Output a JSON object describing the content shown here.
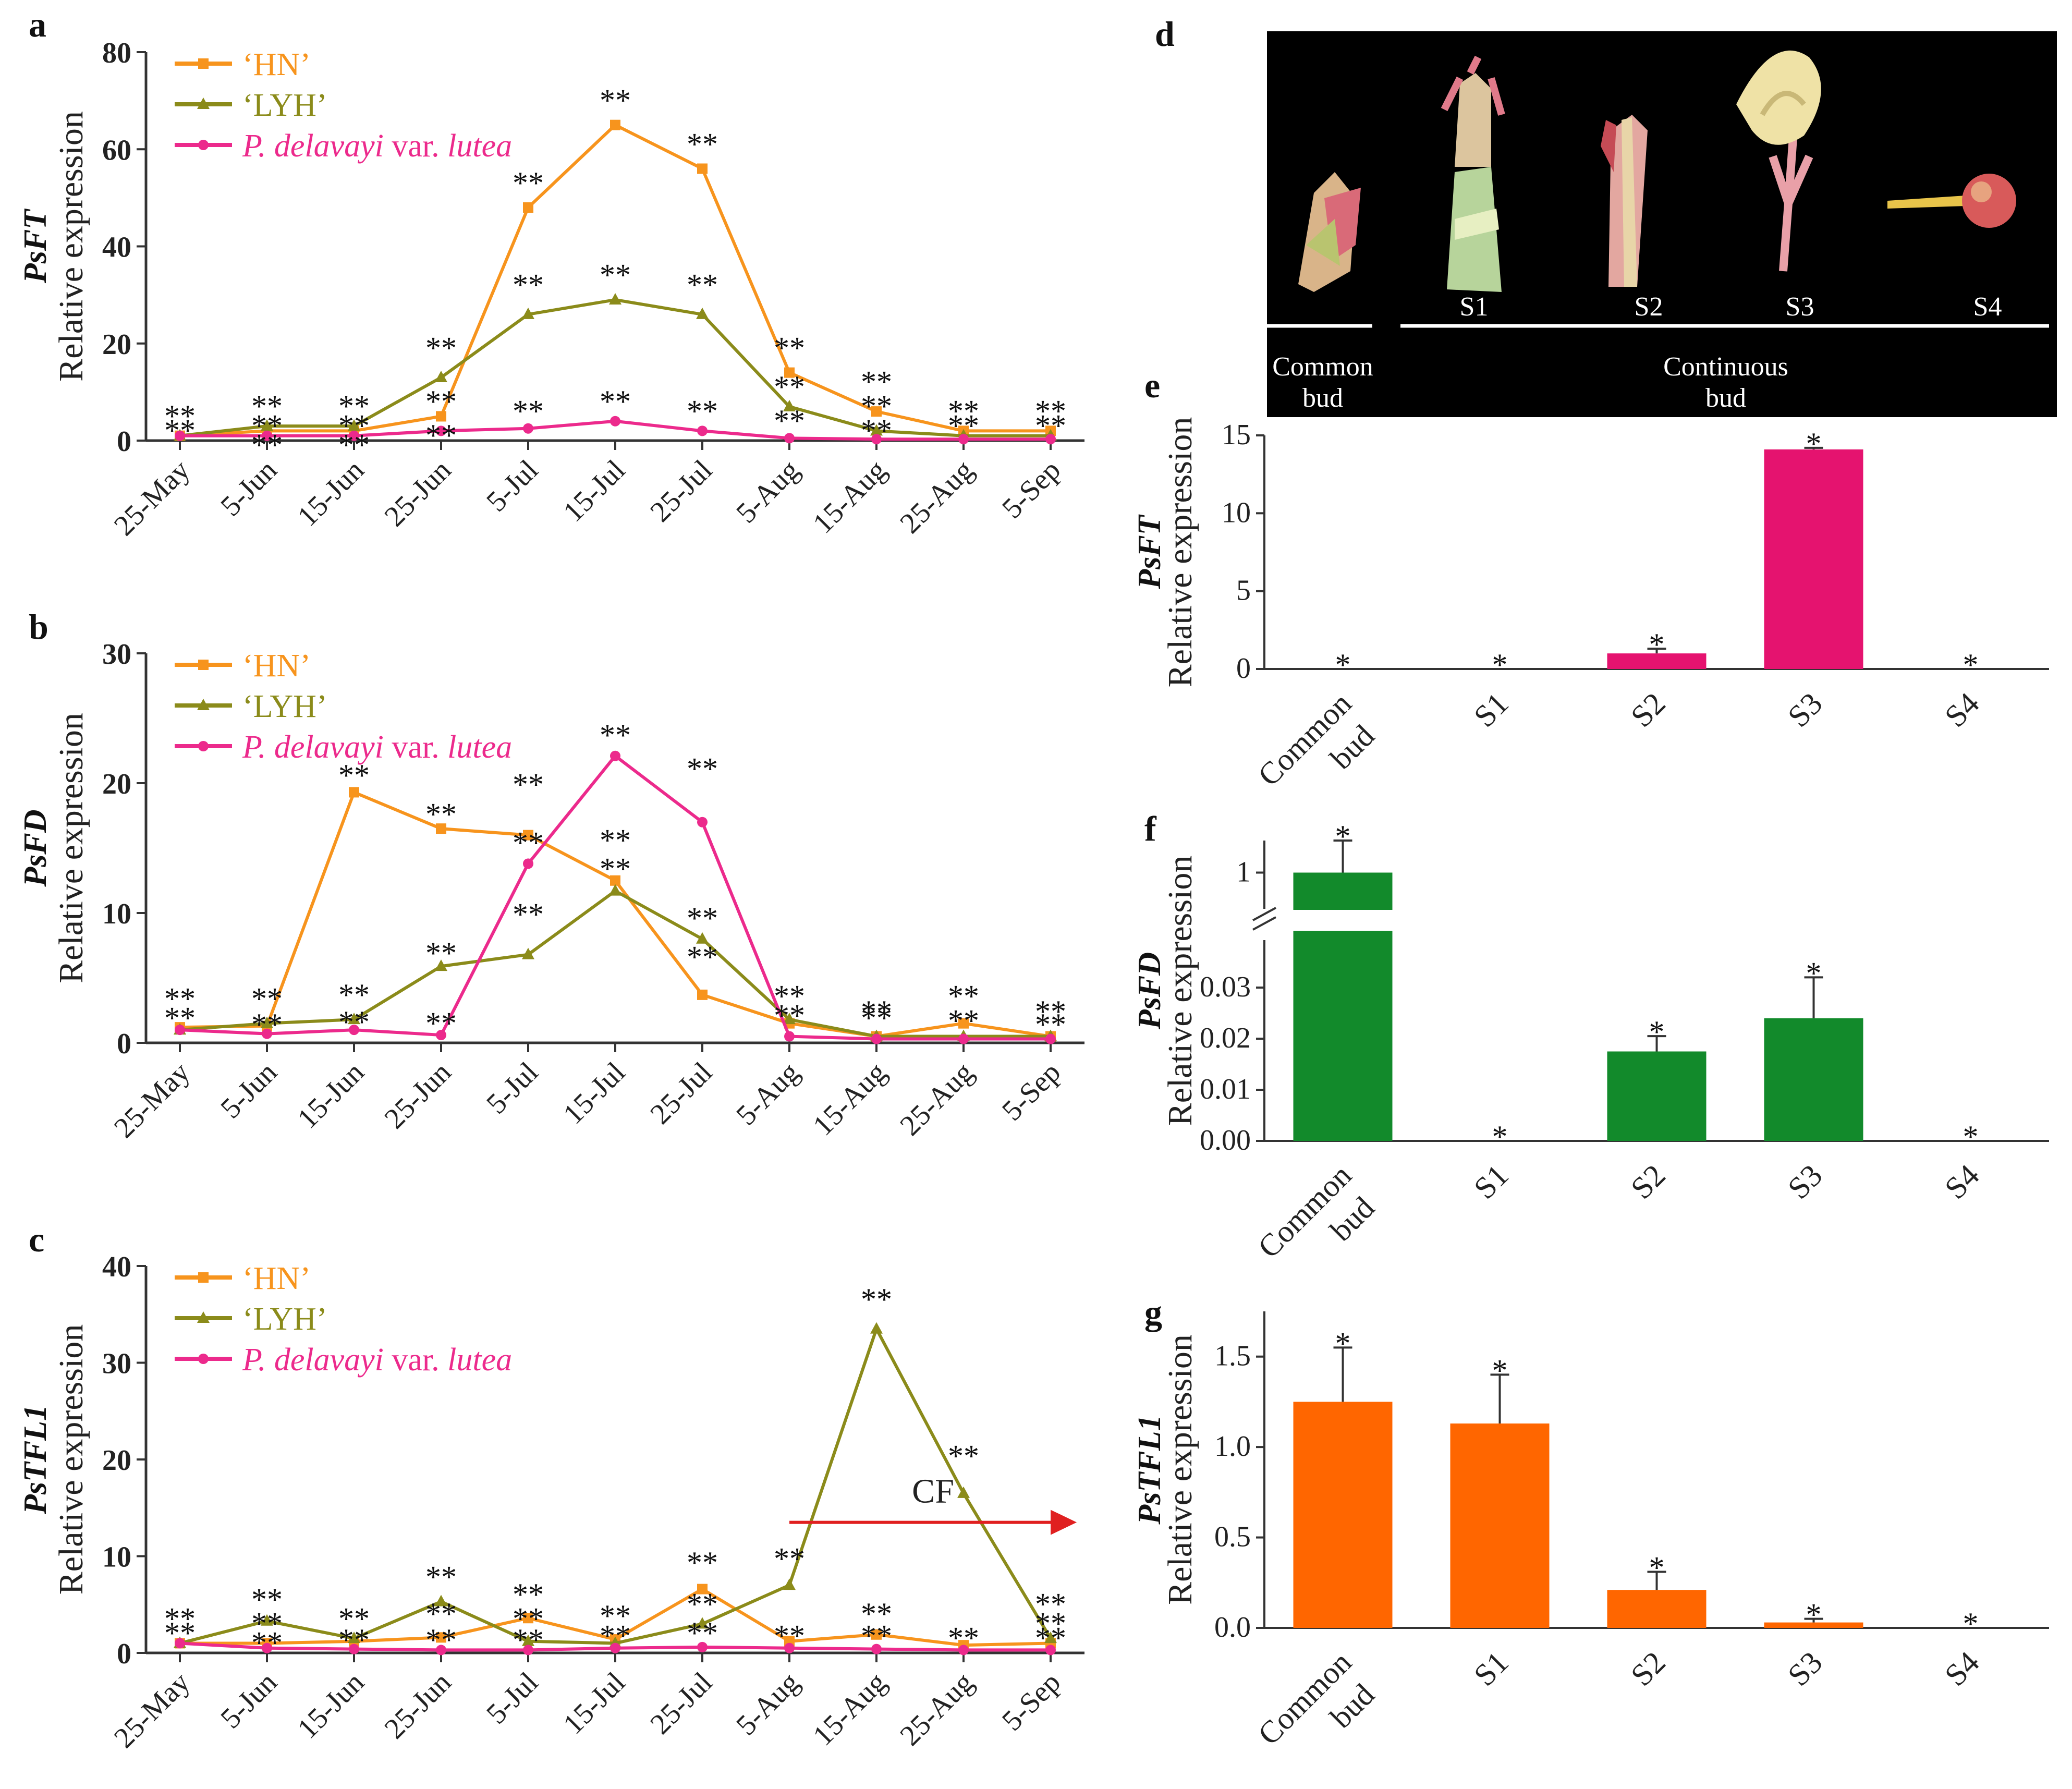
{
  "chart_data": [
    {
      "id": "a",
      "type": "line",
      "panel_label": "a",
      "gene": "PsFT",
      "ylabel": "Relative expression",
      "ylim": [
        0,
        80
      ],
      "yticks": [
        0,
        20,
        40,
        60,
        80
      ],
      "categories": [
        "25-May",
        "5-Jun",
        "15-Jun",
        "25-Jun",
        "5-Jul",
        "15-Jul",
        "25-Jul",
        "5-Aug",
        "15-Aug",
        "25-Aug",
        "5-Sep"
      ],
      "series": [
        {
          "name": "‘HN’",
          "color": "#f7941d",
          "marker": "square",
          "values": [
            1,
            2,
            2,
            5,
            48,
            65,
            56,
            14,
            6,
            2,
            2
          ]
        },
        {
          "name": "‘LYH’",
          "color": "#8b8b1a",
          "marker": "triangle",
          "values": [
            1,
            3,
            3,
            13,
            26,
            29,
            26,
            7,
            2,
            1,
            1
          ]
        },
        {
          "name": "P. delavayi var. lutea",
          "color": "#ec2a8c",
          "marker": "circle",
          "values": [
            1,
            1,
            1,
            2,
            2.5,
            4,
            2,
            0.5,
            0.3,
            0.3,
            0.3
          ]
        }
      ],
      "legend": [
        {
          "text": "‘HN’"
        },
        {
          "text": "‘LYH’"
        },
        {
          "parts": [
            {
              "t": "P. delavayi",
              "i": true
            },
            {
              "t": " var. ",
              "i": false
            },
            {
              "t": "lutea",
              "i": true
            }
          ]
        }
      ],
      "annotations": [
        {
          "text": "**",
          "x": 0,
          "y": 4
        },
        {
          "text": "**",
          "x": 0,
          "y": 1
        },
        {
          "text": "**",
          "x": 1,
          "y": 6
        },
        {
          "text": "**",
          "x": 1,
          "y": 2
        },
        {
          "text": "**",
          "x": 1,
          "y": -2
        },
        {
          "text": "**",
          "x": 2,
          "y": 6
        },
        {
          "text": "**",
          "x": 2,
          "y": 2
        },
        {
          "text": "**",
          "x": 2,
          "y": -2
        },
        {
          "text": "**",
          "x": 3,
          "y": 18
        },
        {
          "text": "**",
          "x": 3,
          "y": 7
        },
        {
          "text": "**",
          "x": 3,
          "y": 0
        },
        {
          "text": "**",
          "x": 4,
          "y": 52
        },
        {
          "text": "**",
          "x": 4,
          "y": 31
        },
        {
          "text": "**",
          "x": 4,
          "y": 5
        },
        {
          "text": "**",
          "x": 5,
          "y": 69
        },
        {
          "text": "**",
          "x": 5,
          "y": 33
        },
        {
          "text": "**",
          "x": 5,
          "y": 7
        },
        {
          "text": "**",
          "x": 6,
          "y": 60
        },
        {
          "text": "**",
          "x": 6,
          "y": 31
        },
        {
          "text": "**",
          "x": 6,
          "y": 5
        },
        {
          "text": "**",
          "x": 7,
          "y": 18
        },
        {
          "text": "**",
          "x": 7,
          "y": 10
        },
        {
          "text": "**",
          "x": 7,
          "y": 3
        },
        {
          "text": "**",
          "x": 8,
          "y": 11
        },
        {
          "text": "**",
          "x": 8,
          "y": 6
        },
        {
          "text": "**",
          "x": 8,
          "y": 1
        },
        {
          "text": "**",
          "x": 9,
          "y": 5
        },
        {
          "text": "**",
          "x": 9,
          "y": 2
        },
        {
          "text": "**",
          "x": 10,
          "y": 5
        },
        {
          "text": "**",
          "x": 10,
          "y": 2
        }
      ]
    },
    {
      "id": "b",
      "type": "line",
      "panel_label": "b",
      "gene": "PsFD",
      "ylabel": "Relative expression",
      "ylim": [
        0,
        30
      ],
      "yticks": [
        0,
        10,
        20,
        30
      ],
      "categories": [
        "25-May",
        "5-Jun",
        "15-Jun",
        "25-Jun",
        "5-Jul",
        "15-Jul",
        "25-Jul",
        "5-Aug",
        "15-Aug",
        "25-Aug",
        "5-Sep"
      ],
      "series": [
        {
          "name": "‘HN’",
          "color": "#f7941d",
          "marker": "square",
          "values": [
            1.2,
            1.3,
            19.3,
            16.5,
            16,
            12.5,
            3.7,
            1.5,
            0.5,
            1.5,
            0.5
          ]
        },
        {
          "name": "‘LYH’",
          "color": "#8b8b1a",
          "marker": "triangle",
          "values": [
            1,
            1.5,
            1.8,
            5.9,
            6.8,
            11.7,
            8,
            1.8,
            0.5,
            0.5,
            0.5
          ]
        },
        {
          "name": "P. delavayi var. lutea",
          "color": "#ec2a8c",
          "marker": "circle",
          "values": [
            1,
            0.7,
            1,
            0.6,
            13.8,
            22.1,
            17,
            0.5,
            0.3,
            0.3,
            0.3
          ]
        }
      ],
      "legend": [
        {
          "text": "‘HN’"
        },
        {
          "text": "‘LYH’"
        },
        {
          "parts": [
            {
              "t": "P. delavayi",
              "i": true
            },
            {
              "t": " var. ",
              "i": false
            },
            {
              "t": "lutea",
              "i": true
            }
          ]
        }
      ],
      "annotations": [
        {
          "text": "**",
          "x": 0,
          "y": 3
        },
        {
          "text": "**",
          "x": 0,
          "y": 1.5
        },
        {
          "text": "**",
          "x": 1,
          "y": 3
        },
        {
          "text": "**",
          "x": 1,
          "y": 1
        },
        {
          "text": "**",
          "x": 2,
          "y": 20.2
        },
        {
          "text": "**",
          "x": 2,
          "y": 3.3
        },
        {
          "text": "**",
          "x": 2,
          "y": 1.2
        },
        {
          "text": "**",
          "x": 3,
          "y": 17.2
        },
        {
          "text": "**",
          "x": 3,
          "y": 6.5
        },
        {
          "text": "**",
          "x": 3,
          "y": 1.1
        },
        {
          "text": "**",
          "x": 4,
          "y": 19.5
        },
        {
          "text": "**",
          "x": 4,
          "y": 15
        },
        {
          "text": "**",
          "x": 4,
          "y": 9.5
        },
        {
          "text": "**",
          "x": 5,
          "y": 23.3
        },
        {
          "text": "**",
          "x": 5,
          "y": 15.2
        },
        {
          "text": "**",
          "x": 5,
          "y": 13
        },
        {
          "text": "**",
          "x": 6,
          "y": 20.7
        },
        {
          "text": "**",
          "x": 6,
          "y": 9.2
        },
        {
          "text": "**",
          "x": 6,
          "y": 6.2
        },
        {
          "text": "**",
          "x": 7,
          "y": 3.2
        },
        {
          "text": "**",
          "x": 7,
          "y": 1.7
        },
        {
          "text": "**",
          "x": 8,
          "y": 2
        },
        {
          "text": "**",
          "x": 8,
          "y": 1.5
        },
        {
          "text": "**",
          "x": 9,
          "y": 3.2
        },
        {
          "text": "**",
          "x": 9,
          "y": 1.3
        },
        {
          "text": "**",
          "x": 10,
          "y": 2
        },
        {
          "text": "**",
          "x": 10,
          "y": 1
        }
      ]
    },
    {
      "id": "c",
      "type": "line",
      "panel_label": "c",
      "gene": "PsTFL1",
      "ylabel": "Relative expression",
      "ylim": [
        0,
        40
      ],
      "yticks": [
        0,
        10,
        20,
        30,
        40
      ],
      "categories": [
        "25-May",
        "5-Jun",
        "15-Jun",
        "25-Jun",
        "5-Jul",
        "15-Jul",
        "25-Jul",
        "5-Aug",
        "15-Aug",
        "25-Aug",
        "5-Sep"
      ],
      "series": [
        {
          "name": "‘HN’",
          "color": "#f7941d",
          "marker": "square",
          "values": [
            1,
            1,
            1.2,
            1.6,
            3.6,
            1.4,
            6.6,
            1.2,
            1.9,
            0.8,
            1
          ]
        },
        {
          "name": "‘LYH’",
          "color": "#8b8b1a",
          "marker": "triangle",
          "values": [
            1,
            3.3,
            1.5,
            5.3,
            1.2,
            1,
            3,
            7,
            33.5,
            16.5,
            1.5
          ]
        },
        {
          "name": "P. delavayi var. lutea",
          "color": "#ec2a8c",
          "marker": "circle",
          "values": [
            1,
            0.5,
            0.4,
            0.3,
            0.3,
            0.5,
            0.6,
            0.5,
            0.4,
            0.3,
            0.3
          ]
        }
      ],
      "legend": [
        {
          "text": "‘HN’"
        },
        {
          "text": "‘LYH’"
        },
        {
          "parts": [
            {
              "t": "P. delavayi",
              "i": true
            },
            {
              "t": " var. ",
              "i": false
            },
            {
              "t": "lutea",
              "i": true
            }
          ]
        }
      ],
      "arrow": {
        "label": "CF",
        "x_from": 7,
        "x_to": 10.3,
        "y": 13.5
      },
      "annotations": [
        {
          "text": "**",
          "x": 0,
          "y": 3
        },
        {
          "text": "**",
          "x": 0,
          "y": 1.5
        },
        {
          "text": "**",
          "x": 1,
          "y": 5
        },
        {
          "text": "**",
          "x": 1,
          "y": 2.5
        },
        {
          "text": "**",
          "x": 1,
          "y": 0.5
        },
        {
          "text": "**",
          "x": 2,
          "y": 3
        },
        {
          "text": "**",
          "x": 2,
          "y": 0.8
        },
        {
          "text": "**",
          "x": 3,
          "y": 7.3
        },
        {
          "text": "**",
          "x": 3,
          "y": 3.5
        },
        {
          "text": "**",
          "x": 3,
          "y": 0.8
        },
        {
          "text": "**",
          "x": 4,
          "y": 5.5
        },
        {
          "text": "**",
          "x": 4,
          "y": 3
        },
        {
          "text": "**",
          "x": 4,
          "y": 0.8
        },
        {
          "text": "**",
          "x": 5,
          "y": 3.3
        },
        {
          "text": "**",
          "x": 5,
          "y": 1.2
        },
        {
          "text": "**",
          "x": 6,
          "y": 8.8
        },
        {
          "text": "**",
          "x": 6,
          "y": 4.5
        },
        {
          "text": "**",
          "x": 6,
          "y": 1.5
        },
        {
          "text": "**",
          "x": 7,
          "y": 9.2
        },
        {
          "text": "**",
          "x": 7,
          "y": 1.2
        },
        {
          "text": "**",
          "x": 8,
          "y": 36
        },
        {
          "text": "**",
          "x": 8,
          "y": 3.5
        },
        {
          "text": "**",
          "x": 8,
          "y": 1.2
        },
        {
          "text": "**",
          "x": 9,
          "y": 19.8
        },
        {
          "text": "**",
          "x": 9,
          "y": 1
        },
        {
          "text": "**",
          "x": 10,
          "y": 4.5
        },
        {
          "text": "**",
          "x": 10,
          "y": 2.5
        },
        {
          "text": "**",
          "x": 10,
          "y": 1
        }
      ]
    },
    {
      "id": "e",
      "type": "bar",
      "panel_label": "e",
      "gene": "PsFT",
      "ylabel": "Relative expression",
      "color": "#e5136f",
      "categories": [
        [
          "Common",
          "bud"
        ],
        [
          "S1"
        ],
        [
          "S2"
        ],
        [
          "S3"
        ],
        [
          "S4"
        ]
      ],
      "values": [
        0,
        0,
        1,
        14.1,
        0
      ],
      "errors": [
        0,
        0,
        0.3,
        0.1,
        0
      ],
      "stars": [
        "*",
        "*",
        "*",
        "*",
        "*"
      ],
      "ylim": [
        0,
        15
      ],
      "yticks": [
        0,
        5,
        10,
        15
      ]
    },
    {
      "id": "f",
      "type": "bar",
      "panel_label": "f",
      "gene": "PsFD",
      "ylabel": "Relative expression",
      "color": "#128a2b",
      "categories": [
        [
          "Common",
          "bud"
        ],
        [
          "S1"
        ],
        [
          "S2"
        ],
        [
          "S3"
        ],
        [
          "S4"
        ]
      ],
      "values": [
        1,
        0,
        0.0175,
        0.024,
        0
      ],
      "errors": [
        0.1,
        0,
        0.003,
        0.008,
        0
      ],
      "stars": [
        "*",
        "*",
        "*",
        "*",
        "*"
      ],
      "ylim": [
        0,
        1
      ],
      "axis_break": [
        0.035,
        0.95
      ],
      "yticks_low": [
        "0.00",
        "0.01",
        "0.02",
        "0.03"
      ],
      "yticks_high": [
        "1"
      ]
    },
    {
      "id": "g",
      "type": "bar",
      "panel_label": "g",
      "gene": "PsTFL1",
      "ylabel": "Relative expression",
      "color": "#ff6600",
      "categories": [
        [
          "Common",
          "bud"
        ],
        [
          "S1"
        ],
        [
          "S2"
        ],
        [
          "S3"
        ],
        [
          "S4"
        ]
      ],
      "values": [
        1.25,
        1.13,
        0.21,
        0.03,
        0
      ],
      "errors": [
        0.3,
        0.27,
        0.1,
        0.02,
        0
      ],
      "stars": [
        "*",
        "*",
        "*",
        "*",
        "*"
      ],
      "ylim": [
        0,
        1.75
      ],
      "yticks": [
        "0.0",
        "0.5",
        "1.0",
        "1.5"
      ]
    }
  ],
  "photo": {
    "panel_label": "d",
    "stage_labels": [
      "S1",
      "S2",
      "S3",
      "S4"
    ],
    "group_labels": [
      [
        "Common",
        "bud"
      ],
      [
        "Continuous",
        "bud"
      ]
    ]
  }
}
